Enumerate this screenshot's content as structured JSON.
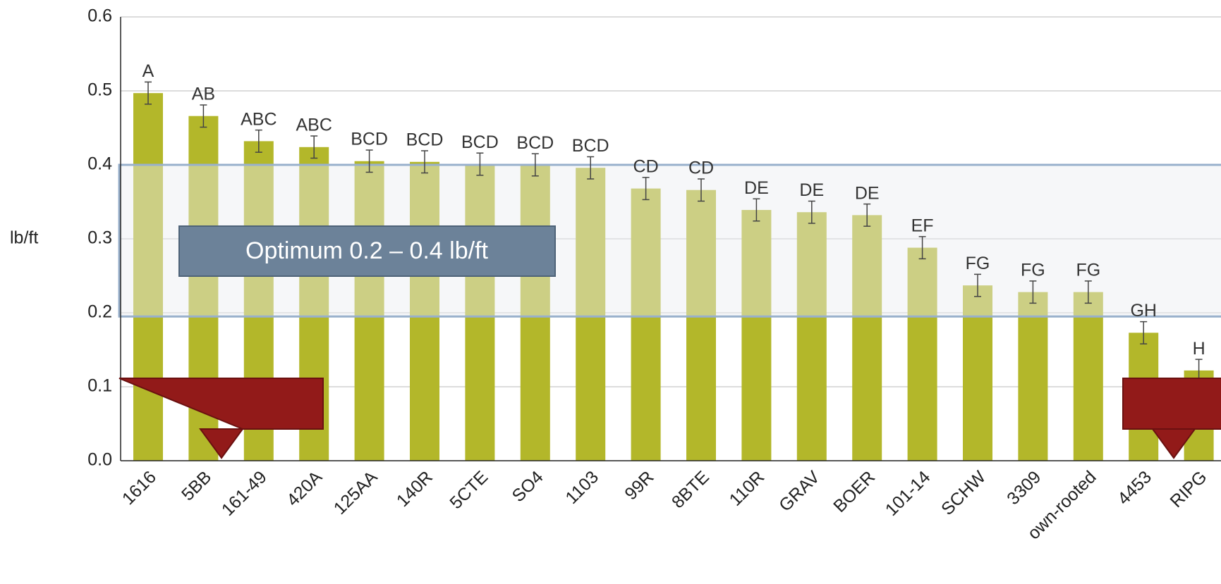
{
  "chart_data": {
    "type": "bar",
    "y_axis_label": "lb/ft",
    "annotation": "Optimum 0.2 – 0.4 lb/ft",
    "band": [
      0.195,
      0.4
    ],
    "categories": [
      "1616",
      "5BB",
      "161-49",
      "420A",
      "125AA",
      "140R",
      "5CTE",
      "SO4",
      "1103",
      "99R",
      "8BTE",
      "110R",
      "GRAV",
      "BOER",
      "101-14",
      "SCHW",
      "3309",
      "own-rooted",
      "4453",
      "RIPG"
    ],
    "values": [
      0.497,
      0.466,
      0.432,
      0.424,
      0.405,
      0.404,
      0.401,
      0.4,
      0.396,
      0.368,
      0.366,
      0.339,
      0.336,
      0.332,
      0.288,
      0.237,
      0.228,
      0.228,
      0.173,
      0.122
    ],
    "errors": [
      0.015,
      0.015,
      0.015,
      0.015,
      0.015,
      0.015,
      0.015,
      0.015,
      0.015,
      0.015,
      0.015,
      0.015,
      0.015,
      0.015,
      0.015,
      0.015,
      0.015,
      0.015,
      0.015,
      0.015
    ],
    "letters": [
      "A",
      "AB",
      "ABC",
      "ABC",
      "BCD",
      "BCD",
      "BCD",
      "BCD",
      "BCD",
      "CD",
      "CD",
      "DE",
      "DE",
      "DE",
      "EF",
      "FG",
      "FG",
      "FG",
      "GH",
      "H"
    ],
    "color": "#b3b72a",
    "ylim": [
      0,
      0.6
    ],
    "yticks": [
      {
        "value": 0,
        "label": "0.0"
      },
      0.1,
      0.2,
      0.3,
      0.4,
      0.5,
      0.6
    ],
    "grid": true
  }
}
